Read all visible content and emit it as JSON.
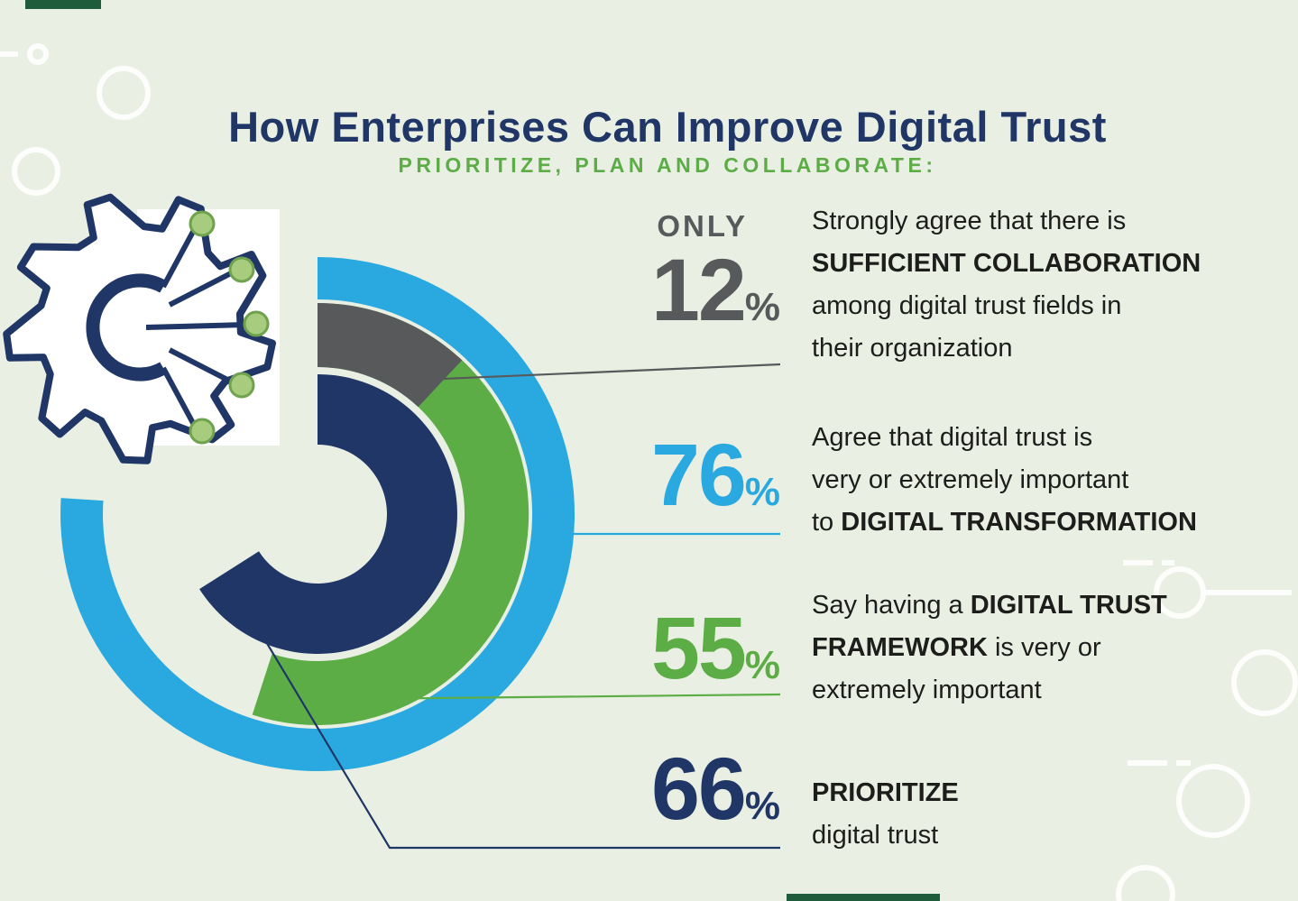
{
  "page": {
    "title": "How Enterprises Can Improve Digital Trust",
    "subtitle": "PRIORITIZE, PLAN AND COLLABORATE:"
  },
  "colors": {
    "background": "#e9efe3",
    "navy": "#1f3667",
    "blue": "#2aa9e0",
    "green": "#5cad46",
    "gray": "#58595b",
    "text": "#1d1d1b",
    "trace_dot_green": "#a8cc7e",
    "trace_dot_edge": "#6fa24e",
    "accent_dark_green": "#1f5c3c",
    "doodle_white": "#ffffff"
  },
  "chart_data": {
    "type": "radial-donut",
    "unit": "%",
    "start_angle_deg": 0,
    "direction": "clockwise",
    "rings": [
      {
        "name": "digital-transformation-importance",
        "label": "76%",
        "value": 76,
        "color_key": "blue",
        "band": "outer"
      },
      {
        "name": "framework-importance",
        "label": "55%",
        "value": 55,
        "color_key": "green",
        "band": "middle"
      },
      {
        "name": "sufficient-collaboration",
        "label": "12%",
        "value": 12,
        "color_key": "gray",
        "band": "middle-overlay"
      },
      {
        "name": "prioritize-digital-trust",
        "label": "66%",
        "value": 66,
        "color_key": "navy",
        "band": "inner"
      }
    ]
  },
  "stats": [
    {
      "id": "sufficient-collaboration",
      "prefix": "ONLY",
      "value": "12",
      "unit": "%",
      "color_key": "gray",
      "lines": [
        [
          {
            "t": "Strongly agree that there is",
            "b": false
          }
        ],
        [
          {
            "t": "SUFFICIENT COLLABORATION",
            "b": true
          }
        ],
        [
          {
            "t": "among digital trust fields in",
            "b": false
          }
        ],
        [
          {
            "t": "their organization",
            "b": false
          }
        ]
      ]
    },
    {
      "id": "digital-transformation",
      "prefix": "",
      "value": "76",
      "unit": "%",
      "color_key": "blue",
      "lines": [
        [
          {
            "t": "Agree that digital trust is",
            "b": false
          }
        ],
        [
          {
            "t": "very or extremely important",
            "b": false
          }
        ],
        [
          {
            "t": "to ",
            "b": false
          },
          {
            "t": "DIGITAL TRANSFORMATION",
            "b": true
          }
        ]
      ]
    },
    {
      "id": "framework",
      "prefix": "",
      "value": "55",
      "unit": "%",
      "color_key": "green",
      "lines": [
        [
          {
            "t": "Say having a ",
            "b": false
          },
          {
            "t": "DIGITAL TRUST",
            "b": true
          }
        ],
        [
          {
            "t": "FRAMEWORK",
            "b": true
          },
          {
            "t": " is very or",
            "b": false
          }
        ],
        [
          {
            "t": "extremely important",
            "b": false
          }
        ]
      ]
    },
    {
      "id": "prioritize",
      "prefix": "",
      "value": "66",
      "unit": "%",
      "color_key": "navy",
      "lines": [
        [
          {
            "t": "PRIORITIZE",
            "b": true
          }
        ],
        [
          {
            "t": "digital trust",
            "b": false
          }
        ]
      ]
    }
  ]
}
